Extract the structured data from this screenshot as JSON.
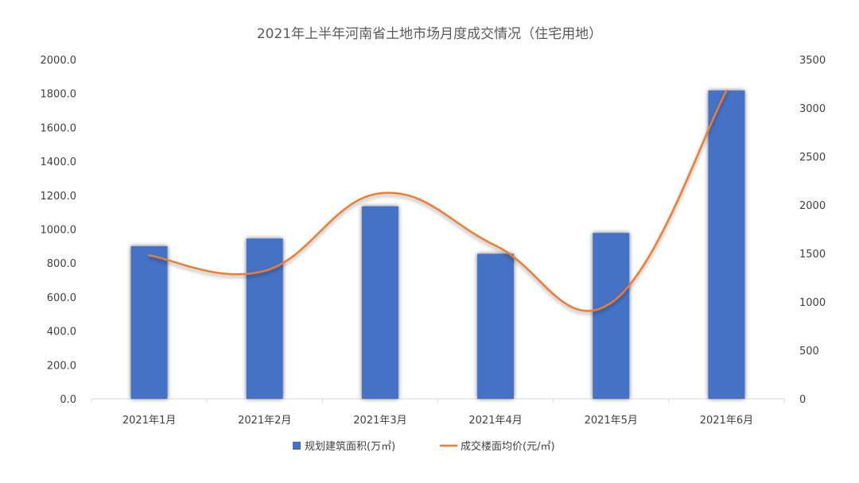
{
  "chart_data": {
    "type": "bar",
    "title": "2021年上半年河南省土地市场月度成交情况（住宅用地）",
    "categories": [
      "2021年1月",
      "2021年2月",
      "2021年3月",
      "2021年4月",
      "2021年5月",
      "2021年6月"
    ],
    "series": [
      {
        "name": "规划建筑面积(万㎡)",
        "type": "bar",
        "axis": "left",
        "color": "#4472C4",
        "values": [
          900,
          945,
          1135,
          855,
          978,
          1818
        ]
      },
      {
        "name": "成交楼面均价(元/㎡)",
        "type": "line",
        "smooth": true,
        "axis": "right",
        "color": "#ED7D31",
        "values": [
          1480,
          1320,
          2120,
          1580,
          990,
          3180
        ]
      }
    ],
    "y_left": {
      "ylim": [
        0,
        2000
      ],
      "ticks": [
        "0.0",
        "200.0",
        "400.0",
        "600.0",
        "800.0",
        "1000.0",
        "1200.0",
        "1400.0",
        "1600.0",
        "1800.0",
        "2000.0"
      ]
    },
    "y_right": {
      "ylim": [
        0,
        3500
      ],
      "ticks": [
        "0",
        "500",
        "1000",
        "1500",
        "2000",
        "2500",
        "3000",
        "3500"
      ]
    },
    "grid": false,
    "legend": "bottom"
  }
}
